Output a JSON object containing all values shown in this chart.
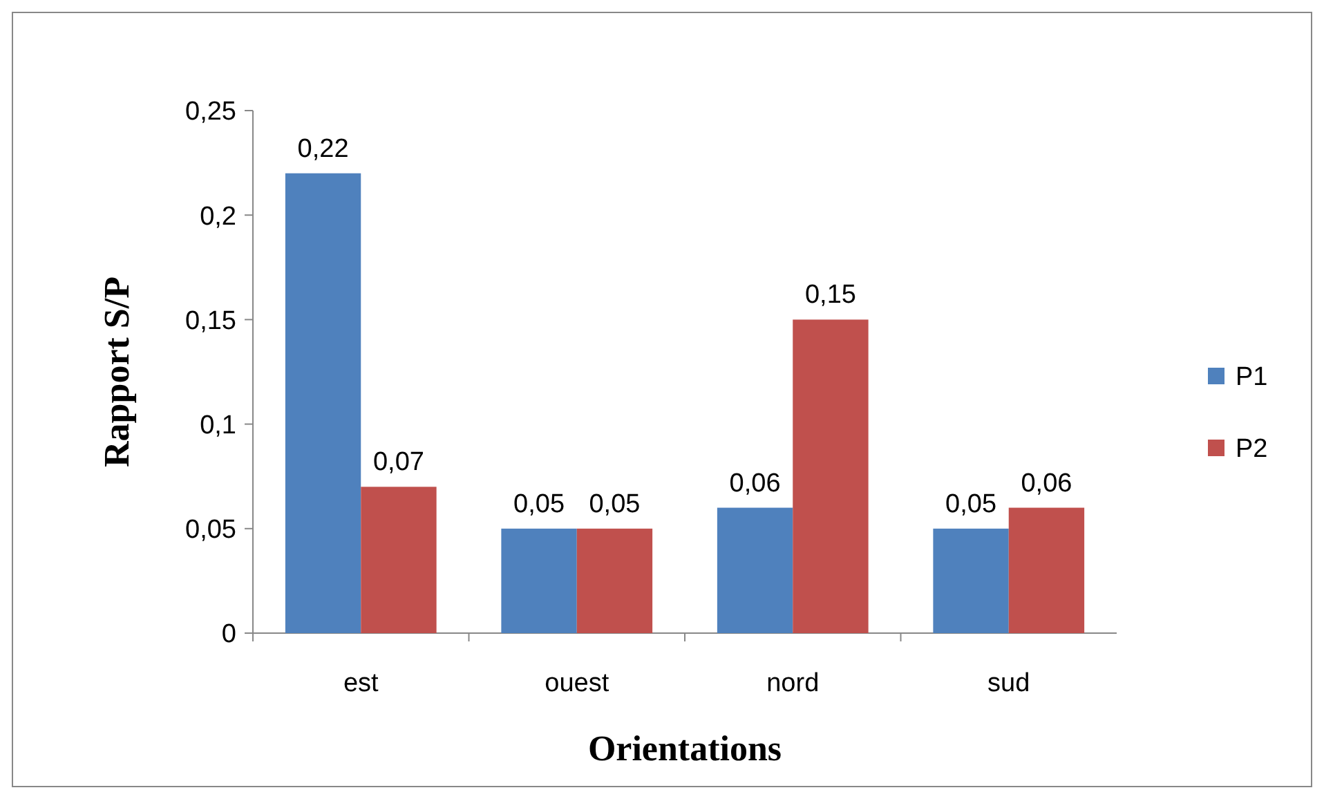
{
  "chart_data": {
    "type": "bar",
    "xlabel": "Orientations",
    "ylabel": "Rapport S/P",
    "categories": [
      "est",
      "ouest",
      "nord",
      "sud"
    ],
    "series": [
      {
        "name": "P1",
        "color": "#4f81bd",
        "values": [
          0.22,
          0.05,
          0.06,
          0.05
        ],
        "value_labels": [
          "0,22",
          "0,05",
          "0,06",
          "0,05"
        ]
      },
      {
        "name": "P2",
        "color": "#c0504d",
        "values": [
          0.07,
          0.05,
          0.15,
          0.06
        ],
        "value_labels": [
          "0,07",
          "0,05",
          "0,15",
          "0,06"
        ]
      }
    ],
    "ylim": [
      0,
      0.25
    ],
    "yticks": [
      0,
      {
        "value": 0.05,
        "label": "0,05"
      },
      {
        "value": 0.1,
        "label": "0,1"
      },
      {
        "value": 0.15,
        "label": "0,15"
      },
      {
        "value": 0.2,
        "label": "0,2"
      },
      {
        "value": 0.25,
        "label": "0,25"
      }
    ],
    "legend": "right"
  }
}
